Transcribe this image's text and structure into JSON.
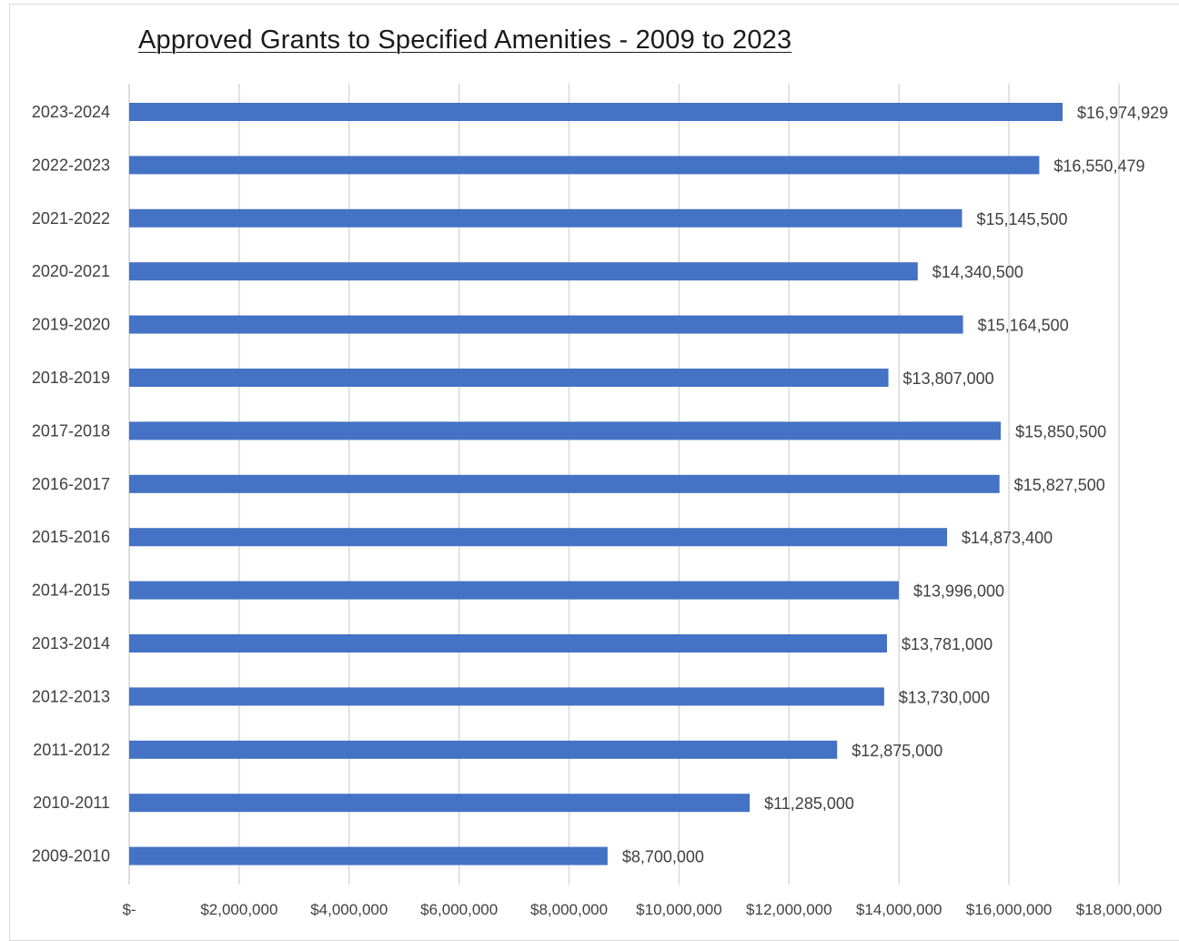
{
  "chart_data": {
    "type": "bar",
    "orientation": "horizontal",
    "title": "Approved Grants to Specified Amenities - 2009 to 2023",
    "xlabel": "",
    "ylabel": "",
    "categories": [
      "2023-2024",
      "2022-2023",
      "2021-2022",
      "2020-2021",
      "2019-2020",
      "2018-2019",
      "2017-2018",
      "2016-2017",
      "2015-2016",
      "2014-2015",
      "2013-2014",
      "2012-2013",
      "2011-2012",
      "2010-2011",
      "2009-2010"
    ],
    "values": [
      16974929,
      16550479,
      15145500,
      14340500,
      15164500,
      13807000,
      15850500,
      15827500,
      14873400,
      13996000,
      13781000,
      13730000,
      12875000,
      11285000,
      8700000
    ],
    "value_labels": [
      "$16,974,929",
      "$16,550,479",
      "$15,145,500",
      "$14,340,500",
      "$15,164,500",
      "$13,807,000",
      "$15,850,500",
      "$15,827,500",
      "$14,873,400",
      "$13,996,000",
      "$13,781,000",
      "$13,730,000",
      "$12,875,000",
      "$11,285,000",
      "$8,700,000"
    ],
    "xlim": [
      0,
      18000000
    ],
    "x_ticks": [
      0,
      2000000,
      4000000,
      6000000,
      8000000,
      10000000,
      12000000,
      14000000,
      16000000,
      18000000
    ],
    "x_tick_labels": [
      "$-",
      "$2,000,000",
      "$4,000,000",
      "$6,000,000",
      "$8,000,000",
      "$10,000,000",
      "$12,000,000",
      "$14,000,000",
      "$16,000,000",
      "$18,000,000"
    ],
    "grid": "vertical",
    "legend": "none",
    "bar_color": "#4472c4",
    "grid_color": "#d9d9d9"
  }
}
